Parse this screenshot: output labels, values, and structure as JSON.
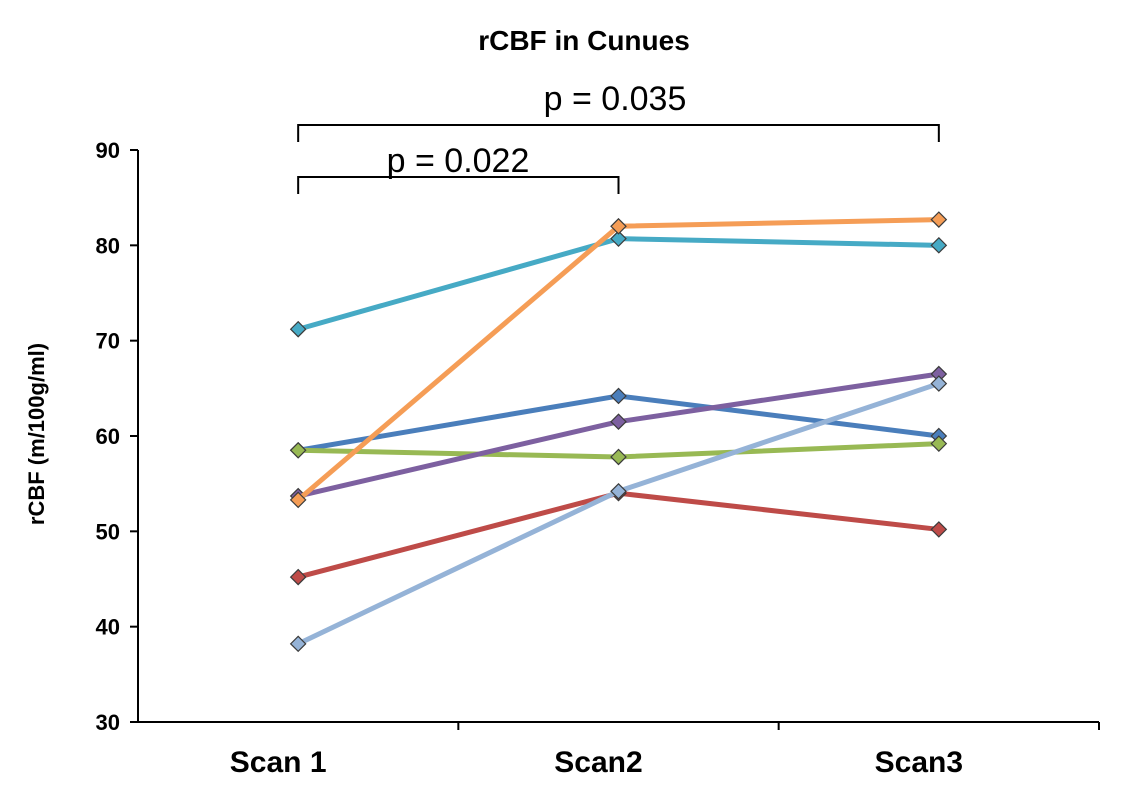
{
  "chart_data": {
    "type": "line",
    "title": "rCBF in Cunues",
    "ylabel": "rCBF (m/100g/ml)",
    "xlabel": "",
    "categories": [
      "Scan 1",
      "Scan2",
      "Scan3"
    ],
    "ylim": [
      30,
      90
    ],
    "yticks": [
      30,
      40,
      50,
      60,
      70,
      80,
      90
    ],
    "grid": false,
    "series": [
      {
        "color": "#4a7ebb",
        "values": [
          58.5,
          64.2,
          60.0
        ]
      },
      {
        "color": "#be4b48",
        "values": [
          45.2,
          54.0,
          50.2
        ]
      },
      {
        "color": "#98b954",
        "values": [
          58.5,
          57.8,
          59.2
        ]
      },
      {
        "color": "#7d60a0",
        "values": [
          53.7,
          61.5,
          66.5
        ]
      },
      {
        "color": "#46aac5",
        "values": [
          71.2,
          80.7,
          80.0
        ]
      },
      {
        "color": "#f59d56",
        "values": [
          53.3,
          82.0,
          82.7
        ]
      },
      {
        "color": "#95b3d7",
        "values": [
          38.2,
          54.2,
          65.5
        ]
      }
    ],
    "annotations": [
      {
        "text": "p = 0.022",
        "from": 0,
        "to": 1
      },
      {
        "text": "p = 0.035",
        "from": 0,
        "to": 2
      }
    ]
  }
}
